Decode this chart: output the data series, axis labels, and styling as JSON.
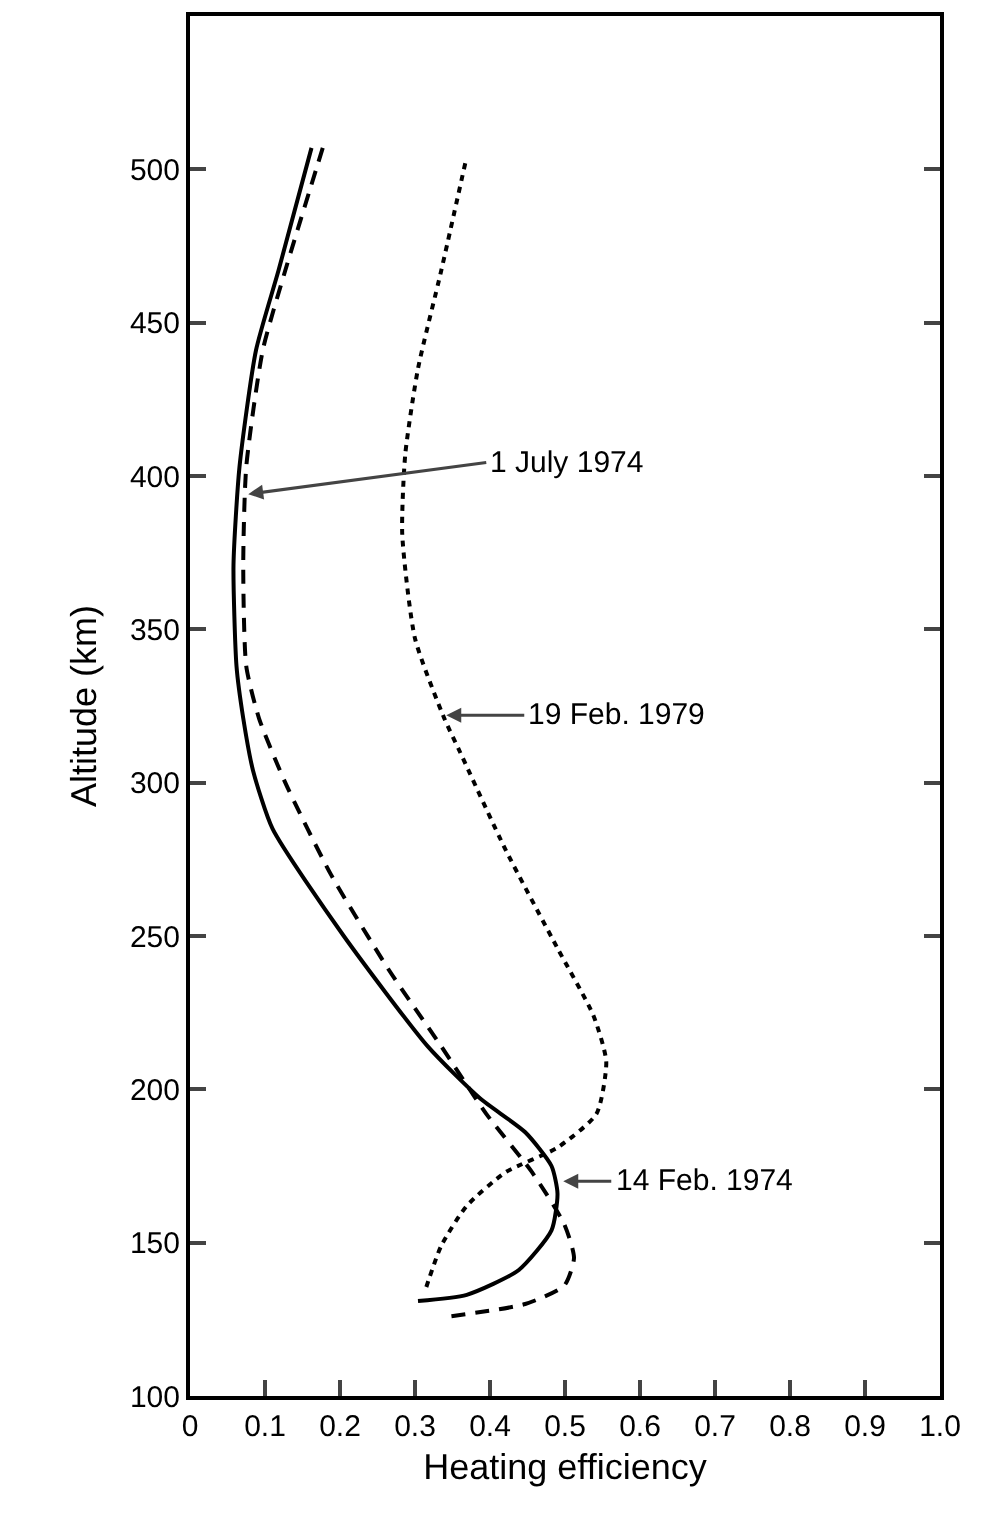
{
  "chart_data": {
    "type": "line",
    "xlabel": "Heating efficiency",
    "ylabel": "Altitude (km)",
    "xlim": [
      0,
      1
    ],
    "xticks": [
      0,
      0.1,
      0.2,
      0.3,
      0.4,
      0.5,
      0.6,
      0.7,
      0.8,
      0.9,
      {
        "value": 1,
        "label": "1.0"
      }
    ],
    "ylim": [
      100,
      550
    ],
    "yticks": [
      100,
      150,
      200,
      250,
      300,
      350,
      400,
      450,
      500
    ],
    "grid": false,
    "marker": "none",
    "series": [
      {
        "color": "#000000",
        "line_style": "solid",
        "x": [
          0.162,
          0.118,
          0.088,
          0.066,
          0.058,
          0.062,
          0.071,
          0.084,
          0.11,
          0.205,
          0.317,
          0.387,
          0.447,
          0.482,
          0.49,
          0.482,
          0.438,
          0.369,
          0.304
        ],
        "values": [
          507,
          467,
          441,
          403,
          371,
          338,
          321,
          304,
          285,
          250,
          214,
          197,
          186,
          175,
          166,
          154,
          141,
          133,
          131
        ]
      },
      {
        "color": "#000000",
        "line_style": "dashed",
        "x": [
          0.177,
          0.127,
          0.097,
          0.075,
          0.071,
          0.075,
          0.092,
          0.127,
          0.188,
          0.265,
          0.335,
          0.395,
          0.456,
          0.499,
          0.512,
          0.499,
          0.447,
          0.348
        ],
        "values": [
          507,
          467,
          441,
          403,
          371,
          338,
          321,
          300,
          270,
          239,
          214,
          192,
          173,
          156,
          145,
          136,
          130,
          126
        ]
      },
      {
        "color": "#000000",
        "line_style": "dotted",
        "x": [
          0.367,
          0.335,
          0.304,
          0.287,
          0.283,
          0.3,
          0.339,
          0.36,
          0.421,
          0.49,
          0.538,
          0.555,
          0.542,
          0.49,
          0.421,
          0.369,
          0.335,
          0.313
        ],
        "values": [
          502,
          467,
          435,
          407,
          381,
          347,
          321,
          310,
          278,
          246,
          224,
          209,
          192,
          181,
          173,
          162,
          149,
          134
        ]
      }
    ],
    "annotations": [
      {
        "text": "1 July 1974",
        "x": 0.075,
        "y": 394
      },
      {
        "text": "19 Feb. 1979",
        "x": 0.339,
        "y": 322
      },
      {
        "text": "14 Feb. 1974",
        "x": 0.495,
        "y": 170
      }
    ]
  }
}
